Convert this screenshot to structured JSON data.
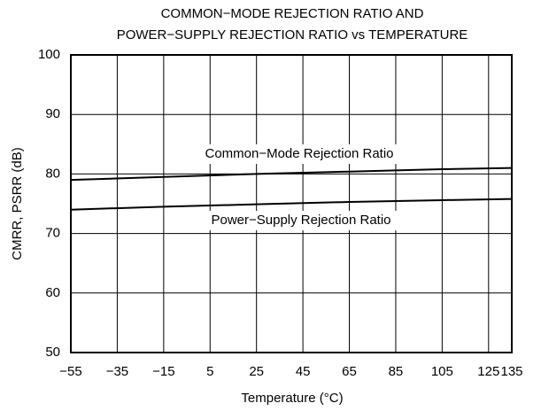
{
  "chart_data": {
    "type": "line",
    "title": [
      "COMMON−MODE REJECTION RATIO AND",
      "POWER−SUPPLY REJECTION RATIO vs TEMPERATURE"
    ],
    "xlabel": "Temperature (°C)",
    "ylabel": "CMRR, PSRR (dB)",
    "x": [
      -55,
      -15,
      25,
      65,
      105,
      135
    ],
    "series": [
      {
        "name": "Common−Mode Rejection Ratio",
        "color": "#000000",
        "values": [
          79,
          79.5,
          80,
          80.4,
          80.8,
          81
        ]
      },
      {
        "name": "Power−Supply Rejection Ratio",
        "color": "#000000",
        "values": [
          74,
          74.5,
          74.9,
          75.3,
          75.6,
          75.8
        ]
      }
    ],
    "xlim": [
      -55,
      135
    ],
    "xticks": [
      {
        "value": -55,
        "label": "−55"
      },
      {
        "value": -35,
        "label": "−35"
      },
      {
        "value": -15,
        "label": "−15"
      },
      5,
      25,
      45,
      65,
      85,
      105,
      125,
      135
    ],
    "ylim": [
      50,
      100
    ],
    "yticks": [
      50,
      60,
      70,
      80,
      90,
      100
    ],
    "grid": true
  }
}
